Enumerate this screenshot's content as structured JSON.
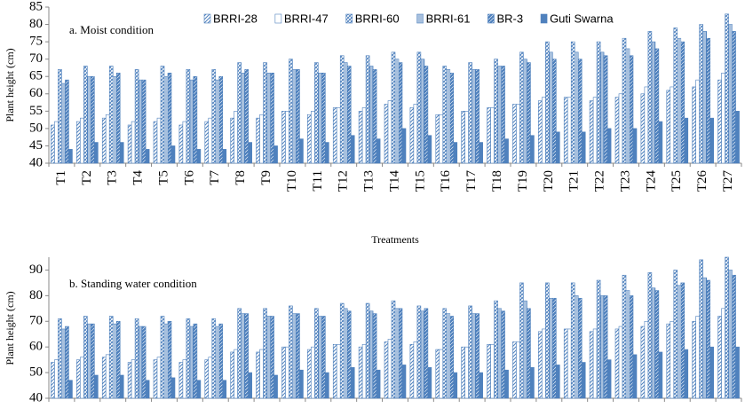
{
  "chart_data": [
    {
      "type": "bar",
      "annotation": "a. Moist condition",
      "y_label": "Plant height (cm)",
      "x_label": "Treatments",
      "legend": "top",
      "categories": [
        "T1",
        "T2",
        "T3",
        "T4",
        "T5",
        "T6",
        "T7",
        "T8",
        "T9",
        "T10",
        "T11",
        "T12",
        "T13",
        "T14",
        "T15",
        "T16",
        "T17",
        "T18",
        "T19",
        "T20",
        "T21",
        "T22",
        "T23",
        "T24",
        "T25",
        "T26",
        "T27"
      ],
      "ylim": [
        40,
        85
      ],
      "yticks": [
        40,
        45,
        50,
        55,
        60,
        65,
        70,
        75,
        80,
        85
      ],
      "series": [
        {
          "name": "BRRI-28",
          "color": "#4f81bd",
          "pattern": "diagonal",
          "values": [
            51,
            52,
            53,
            51,
            52,
            51,
            52,
            53,
            53,
            55,
            54,
            56,
            55,
            57,
            56,
            54,
            55,
            56,
            57,
            58,
            59,
            58,
            59,
            60,
            61,
            62,
            64
          ]
        },
        {
          "name": "BRRI-47",
          "color": "#4f81bd",
          "pattern": "outline",
          "values": [
            52,
            53,
            54,
            52,
            53,
            52,
            53,
            55,
            54,
            55,
            55,
            56,
            56,
            58,
            57,
            54,
            55,
            56,
            57,
            59,
            59,
            59,
            60,
            62,
            62,
            64,
            66
          ]
        },
        {
          "name": "BRRI-60",
          "color": "#4f81bd",
          "pattern": "cross",
          "values": [
            67,
            68,
            68,
            67,
            68,
            67,
            67,
            69,
            69,
            70,
            69,
            71,
            71,
            72,
            72,
            68,
            69,
            70,
            72,
            75,
            75,
            75,
            76,
            78,
            79,
            80,
            83
          ]
        },
        {
          "name": "BRRI-61",
          "color": "#4f81bd",
          "pattern": "vertical",
          "values": [
            63,
            65,
            65,
            64,
            65,
            64,
            64,
            66,
            66,
            67,
            66,
            69,
            68,
            70,
            70,
            67,
            67,
            68,
            70,
            72,
            72,
            72,
            73,
            75,
            76,
            78,
            80
          ]
        },
        {
          "name": "BR-3",
          "color": "#4f81bd",
          "pattern": "dense",
          "values": [
            64,
            65,
            66,
            64,
            66,
            65,
            65,
            67,
            66,
            67,
            66,
            68,
            67,
            69,
            68,
            66,
            67,
            68,
            69,
            70,
            70,
            71,
            71,
            73,
            75,
            76,
            78
          ]
        },
        {
          "name": "Guti Swarna",
          "color": "#4f81bd",
          "pattern": "solid",
          "values": [
            44,
            46,
            46,
            44,
            45,
            44,
            44,
            46,
            45,
            47,
            46,
            48,
            47,
            50,
            48,
            46,
            46,
            47,
            48,
            49,
            49,
            50,
            50,
            52,
            53,
            53,
            55
          ]
        }
      ]
    },
    {
      "type": "bar",
      "annotation": "b. Standing water condition",
      "y_label": "Plant height (cm)",
      "ylim": [
        40,
        95
      ],
      "yticks": [
        40,
        50,
        60,
        70,
        80,
        90
      ],
      "series": [
        {
          "color": "#4f81bd",
          "pattern": "diagonal",
          "values": [
            54,
            55,
            56,
            54,
            55,
            54,
            55,
            58,
            58,
            60,
            59,
            61,
            60,
            62,
            61,
            59,
            60,
            61,
            62,
            66,
            67,
            66,
            67,
            68,
            69,
            70,
            72
          ]
        },
        {
          "color": "#4f81bd",
          "pattern": "outline",
          "values": [
            55,
            56,
            57,
            55,
            56,
            55,
            56,
            59,
            59,
            60,
            60,
            61,
            61,
            63,
            62,
            59,
            60,
            61,
            62,
            67,
            67,
            67,
            68,
            70,
            70,
            72,
            75
          ]
        },
        {
          "color": "#4f81bd",
          "pattern": "cross",
          "values": [
            71,
            72,
            72,
            71,
            72,
            71,
            71,
            75,
            75,
            76,
            75,
            77,
            77,
            78,
            76,
            75,
            76,
            78,
            85,
            85,
            85,
            86,
            88,
            89,
            90,
            94,
            95
          ]
        },
        {
          "color": "#4f81bd",
          "pattern": "vertical",
          "values": [
            67,
            69,
            69,
            68,
            69,
            68,
            68,
            73,
            72,
            73,
            72,
            75,
            74,
            75,
            74,
            73,
            73,
            75,
            78,
            79,
            80,
            80,
            82,
            83,
            84,
            87,
            90
          ]
        },
        {
          "color": "#4f81bd",
          "pattern": "dense",
          "values": [
            68,
            69,
            70,
            68,
            70,
            69,
            69,
            73,
            72,
            73,
            72,
            74,
            73,
            75,
            75,
            72,
            73,
            74,
            75,
            79,
            79,
            80,
            80,
            82,
            85,
            86,
            88
          ]
        },
        {
          "color": "#4f81bd",
          "pattern": "solid",
          "values": [
            47,
            49,
            49,
            47,
            48,
            47,
            47,
            50,
            49,
            51,
            50,
            52,
            51,
            53,
            52,
            50,
            50,
            51,
            52,
            53,
            54,
            55,
            57,
            58,
            59,
            60,
            60
          ]
        }
      ]
    }
  ]
}
